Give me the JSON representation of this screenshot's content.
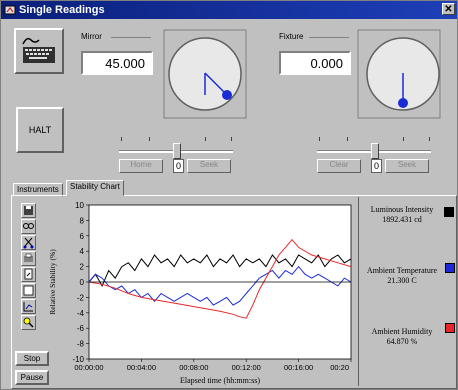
{
  "window": {
    "title": "Single Readings",
    "close_label": "✕"
  },
  "mirror": {
    "label": "Mirror",
    "value": "45.000",
    "home_label": "Home",
    "seek_label": "Seek",
    "step_value": "0"
  },
  "fixture": {
    "label": "Fixture",
    "value": "0.000",
    "clear_label": "Clear",
    "seek_label": "Seek",
    "step_value": "0"
  },
  "halt_label": "HALT",
  "tabs": {
    "instruments": "Instruments",
    "stability_chart": "Stability Chart"
  },
  "toolbar_icons": [
    "save-icon",
    "print-preview-icon",
    "cut-icon",
    "copy-icon",
    "page-icon",
    "grid-icon",
    "axis-icon",
    "zoom-icon"
  ],
  "buttons": {
    "stop": "Stop",
    "pause": "Pause"
  },
  "legend": {
    "luminous": {
      "name": "Luminous Intensity",
      "value": "1892.431",
      "unit": "cd",
      "color": "#000000"
    },
    "temperature": {
      "name": "Ambient Temperature",
      "value": "21.300",
      "unit": "C",
      "color": "#1a2bd6"
    },
    "humidity": {
      "name": "Ambient Humidity",
      "value": "64.870",
      "unit": "%",
      "color": "#e8262a"
    }
  },
  "chart_data": {
    "type": "line",
    "ylabel": "Relative Stability (%)",
    "xlabel": "Elapsed time (hh:mm:ss)",
    "ylim": [
      -10,
      10
    ],
    "y_ticks": [
      "10",
      "8",
      "6",
      "4",
      "2",
      "0",
      "-2",
      "-4",
      "-6",
      "-8",
      "-10"
    ],
    "x_ticks": [
      "00:00:00",
      "00:04:00",
      "00:08:00",
      "00:12:00",
      "00:16:00",
      "00:20"
    ],
    "x_range_minutes": [
      0,
      20
    ],
    "series": [
      {
        "color": "#000000",
        "x": [
          0,
          0.5,
          1,
          1.5,
          2,
          2.5,
          3,
          3.5,
          4,
          4.5,
          5,
          5.5,
          6,
          6.5,
          7,
          7.5,
          8,
          8.5,
          9,
          9.5,
          10,
          10.5,
          11,
          11.5,
          12,
          12.5,
          13,
          13.5,
          14,
          14.5,
          15,
          15.5,
          16,
          16.5,
          17,
          17.5,
          18,
          18.5,
          19,
          19.5,
          20
        ],
        "y": [
          0,
          1,
          -0.5,
          1.5,
          0.5,
          2,
          2.5,
          1.5,
          3,
          2,
          3.5,
          2.5,
          3,
          2,
          3.5,
          2.5,
          3,
          2.5,
          3.5,
          2,
          3,
          2.5,
          3.5,
          2,
          3,
          2.5,
          3,
          2,
          3.5,
          2.5,
          3,
          2,
          3.5,
          3,
          2.5,
          3.5,
          2,
          3,
          3.5,
          2.5,
          3
        ]
      },
      {
        "color": "#1a2bd6",
        "x": [
          0,
          0.5,
          1,
          1.5,
          2,
          2.5,
          3,
          3.5,
          4,
          4.5,
          5,
          5.5,
          6,
          6.5,
          7,
          7.5,
          8,
          8.5,
          9,
          9.5,
          10,
          10.5,
          11,
          11.5,
          12,
          12.5,
          13,
          13.5,
          14,
          14.5,
          15,
          15.5,
          16,
          16.5,
          17,
          17.5,
          18,
          18.5,
          19,
          19.5,
          20
        ],
        "y": [
          0,
          1,
          0.5,
          -0.5,
          -1,
          -0.5,
          -1.5,
          -1,
          -2,
          -1.5,
          -2.5,
          -1.5,
          -2,
          -2.5,
          -2,
          -1.5,
          -2,
          -2.5,
          -2,
          -3,
          -2.5,
          -2,
          -3,
          -2.5,
          -1.5,
          -0.5,
          0.5,
          1,
          1.5,
          0.5,
          1.5,
          1,
          2,
          1,
          0.5,
          1,
          0.5,
          0,
          -0.5,
          0.5,
          0
        ]
      },
      {
        "color": "#e8262a",
        "x": [
          0,
          1,
          2,
          3,
          4,
          5,
          6,
          7,
          8,
          9,
          10,
          11,
          11.5,
          12,
          12.5,
          13,
          14,
          14.5,
          15,
          15.5,
          16,
          17,
          18,
          19,
          20
        ],
        "y": [
          0,
          -0.3,
          -0.8,
          -1.5,
          -2,
          -2.3,
          -2.6,
          -2.9,
          -3.2,
          -3.5,
          -3.8,
          -4.2,
          -4.5,
          -4.7,
          -3,
          -1,
          2,
          3.5,
          4.5,
          5.5,
          4.5,
          3.5,
          3,
          2.5,
          2
        ]
      }
    ]
  }
}
